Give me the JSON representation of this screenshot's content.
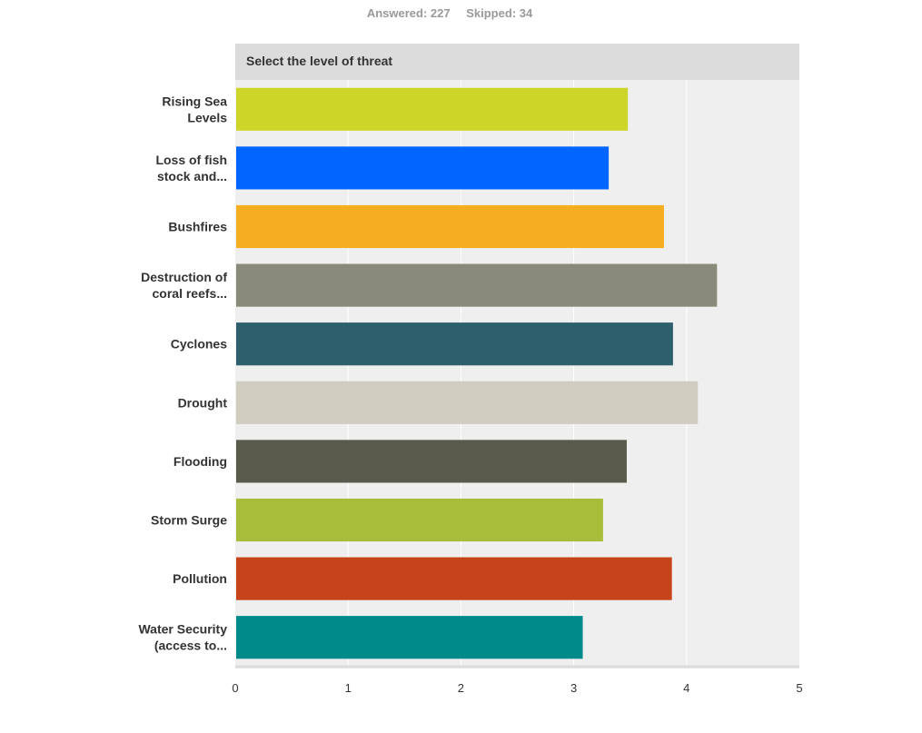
{
  "summary": {
    "answered_label": "Answered: 227",
    "skipped_label": "Skipped: 34"
  },
  "chart_data": {
    "type": "bar",
    "orientation": "horizontal",
    "title": "Select the level of threat",
    "xlabel": "",
    "ylabel": "",
    "xlim": [
      0,
      5
    ],
    "ticks": [
      "0",
      "1",
      "2",
      "3",
      "4",
      "5"
    ],
    "grid": true,
    "categories": [
      [
        "Rising Sea",
        "Levels"
      ],
      [
        "Loss of fish",
        "stock and..."
      ],
      [
        "Bushfires"
      ],
      [
        "Destruction of",
        "coral reefs..."
      ],
      [
        "Cyclones"
      ],
      [
        "Drought"
      ],
      [
        "Flooding"
      ],
      [
        "Storm Surge"
      ],
      [
        "Pollution"
      ],
      [
        "Water Security",
        "(access to..."
      ]
    ],
    "values": [
      3.48,
      3.31,
      3.8,
      4.27,
      3.88,
      4.1,
      3.47,
      3.26,
      3.87,
      3.08
    ],
    "colors": [
      "#cdd628",
      "#0066ff",
      "#f5ae1f",
      "#8a8a7a",
      "#2d5f6c",
      "#cecdc0",
      "#5b5b4d",
      "#a8bd3a",
      "#c7441b",
      "#008b8a"
    ]
  }
}
